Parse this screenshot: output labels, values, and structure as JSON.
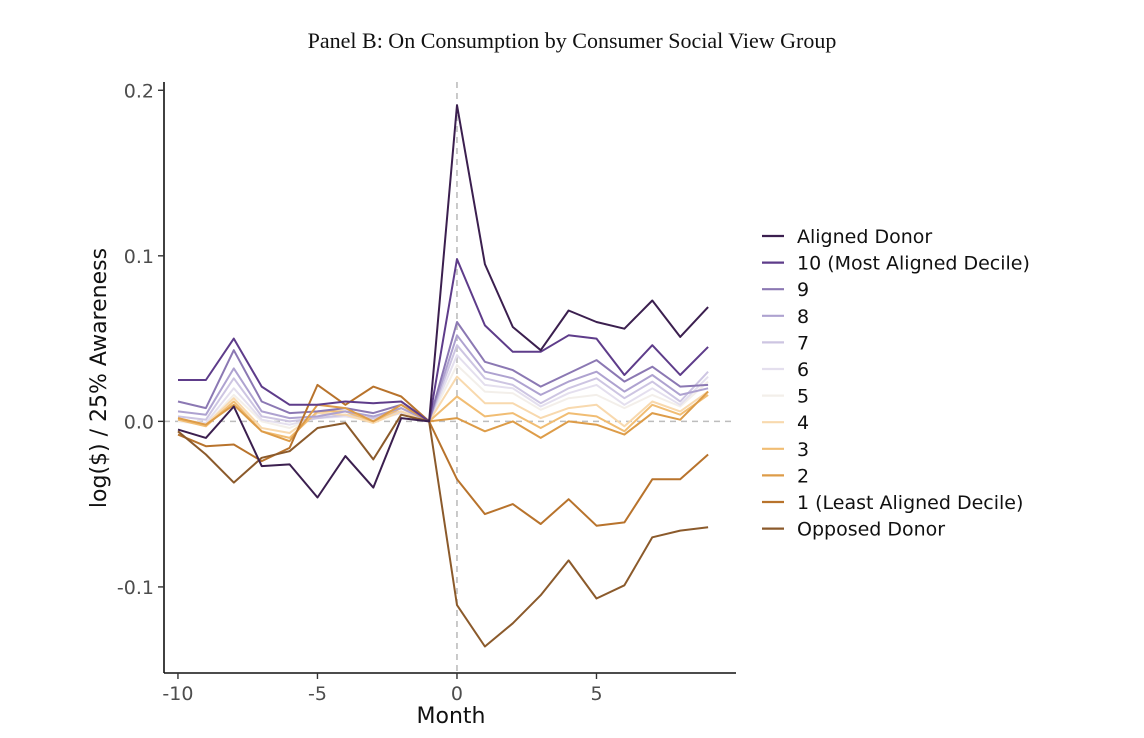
{
  "chart_data": {
    "type": "line",
    "title": "Panel B: On Consumption by Consumer Social View Group",
    "xlabel": "Month",
    "ylabel": "log($)  / 25% Awareness",
    "xlim": [
      -10.5,
      10
    ],
    "ylim": [
      -0.152,
      0.205
    ],
    "x_ticks": [
      -10,
      -5,
      0,
      5
    ],
    "x_tick_labels": [
      "-10",
      "-5",
      "0",
      "5"
    ],
    "y_ticks": [
      -0.1,
      0.0,
      0.1,
      0.2
    ],
    "y_tick_labels": [
      "-0.1",
      "0.0",
      "0.1",
      "0.2"
    ],
    "reference_lines": {
      "x": 0,
      "y": 0
    },
    "x": [
      -10,
      -9,
      -8,
      -7,
      -6,
      -5,
      -4,
      -3,
      -2,
      -1,
      0,
      1,
      2,
      3,
      4,
      5,
      6,
      7,
      8,
      9
    ],
    "series": [
      {
        "name": "Aligned Donor",
        "color": "#3b1f4f",
        "values": [
          -0.005,
          -0.01,
          0.009,
          -0.027,
          -0.026,
          -0.046,
          -0.021,
          -0.04,
          0.002,
          0.0,
          0.191,
          0.095,
          0.057,
          0.043,
          0.067,
          0.06,
          0.056,
          0.073,
          0.051,
          0.069
        ]
      },
      {
        "name": "10 (Most Aligned Decile)",
        "color": "#5e3c8a",
        "values": [
          0.025,
          0.025,
          0.05,
          0.021,
          0.01,
          0.01,
          0.012,
          0.011,
          0.012,
          0.0,
          0.098,
          0.058,
          0.042,
          0.042,
          0.052,
          0.05,
          0.028,
          0.046,
          0.028,
          0.045
        ]
      },
      {
        "name": "9",
        "color": "#8b78b3",
        "values": [
          0.012,
          0.008,
          0.043,
          0.012,
          0.005,
          0.006,
          0.008,
          0.005,
          0.01,
          0.0,
          0.06,
          0.036,
          0.031,
          0.021,
          0.029,
          0.037,
          0.024,
          0.033,
          0.021,
          0.022
        ]
      },
      {
        "name": "8",
        "color": "#aea2d0",
        "values": [
          0.006,
          0.004,
          0.032,
          0.006,
          0.002,
          0.003,
          0.006,
          0.003,
          0.008,
          0.0,
          0.052,
          0.03,
          0.026,
          0.016,
          0.024,
          0.03,
          0.018,
          0.028,
          0.016,
          0.02
        ]
      },
      {
        "name": "7",
        "color": "#cdc5e2",
        "values": [
          0.003,
          0.001,
          0.026,
          0.003,
          0.0,
          0.002,
          0.004,
          0.002,
          0.006,
          0.0,
          0.046,
          0.026,
          0.022,
          0.011,
          0.02,
          0.026,
          0.014,
          0.024,
          0.012,
          0.03
        ]
      },
      {
        "name": "6",
        "color": "#e4dfee",
        "values": [
          0.001,
          -0.001,
          0.02,
          0.001,
          -0.002,
          0.002,
          0.003,
          0.001,
          0.005,
          0.0,
          0.04,
          0.022,
          0.02,
          0.009,
          0.017,
          0.022,
          0.01,
          0.02,
          0.01,
          0.027
        ]
      },
      {
        "name": "5",
        "color": "#f3efea",
        "values": [
          0.0,
          -0.002,
          0.016,
          0.0,
          -0.004,
          0.003,
          0.003,
          0.0,
          0.005,
          0.0,
          0.034,
          0.018,
          0.017,
          0.007,
          0.014,
          0.016,
          0.008,
          0.016,
          0.009,
          0.024
        ]
      },
      {
        "name": "4",
        "color": "#f8d9ae",
        "values": [
          0.002,
          -0.002,
          0.014,
          -0.004,
          -0.007,
          0.005,
          0.004,
          -0.001,
          0.006,
          0.0,
          0.027,
          0.011,
          0.011,
          0.002,
          0.008,
          0.01,
          -0.003,
          0.012,
          0.006,
          0.018
        ]
      },
      {
        "name": "3",
        "color": "#f1bd73",
        "values": [
          0.001,
          -0.003,
          0.012,
          -0.006,
          -0.01,
          0.006,
          0.006,
          0.0,
          0.008,
          0.0,
          0.015,
          0.003,
          0.005,
          -0.004,
          0.005,
          0.003,
          -0.006,
          0.01,
          0.004,
          0.016
        ]
      },
      {
        "name": "2",
        "color": "#dd9c48",
        "values": [
          0.002,
          -0.002,
          0.01,
          -0.006,
          -0.012,
          0.01,
          0.008,
          0.0,
          0.01,
          0.0,
          0.002,
          -0.006,
          0.0,
          -0.01,
          0.0,
          -0.002,
          -0.008,
          0.005,
          0.001,
          0.018
        ]
      },
      {
        "name": "1 (Least Aligned Decile)",
        "color": "#b8732c",
        "values": [
          -0.008,
          -0.015,
          -0.014,
          -0.024,
          -0.016,
          0.022,
          0.01,
          0.021,
          0.015,
          0.0,
          -0.035,
          -0.056,
          -0.05,
          -0.062,
          -0.047,
          -0.063,
          -0.061,
          -0.035,
          -0.035,
          -0.02
        ]
      },
      {
        "name": "Opposed Donor",
        "color": "#8b5a2b",
        "values": [
          -0.006,
          -0.02,
          -0.037,
          -0.022,
          -0.018,
          -0.004,
          -0.001,
          -0.023,
          0.004,
          0.0,
          -0.111,
          -0.136,
          -0.122,
          -0.105,
          -0.084,
          -0.107,
          -0.099,
          -0.07,
          -0.066,
          -0.064
        ]
      }
    ]
  }
}
